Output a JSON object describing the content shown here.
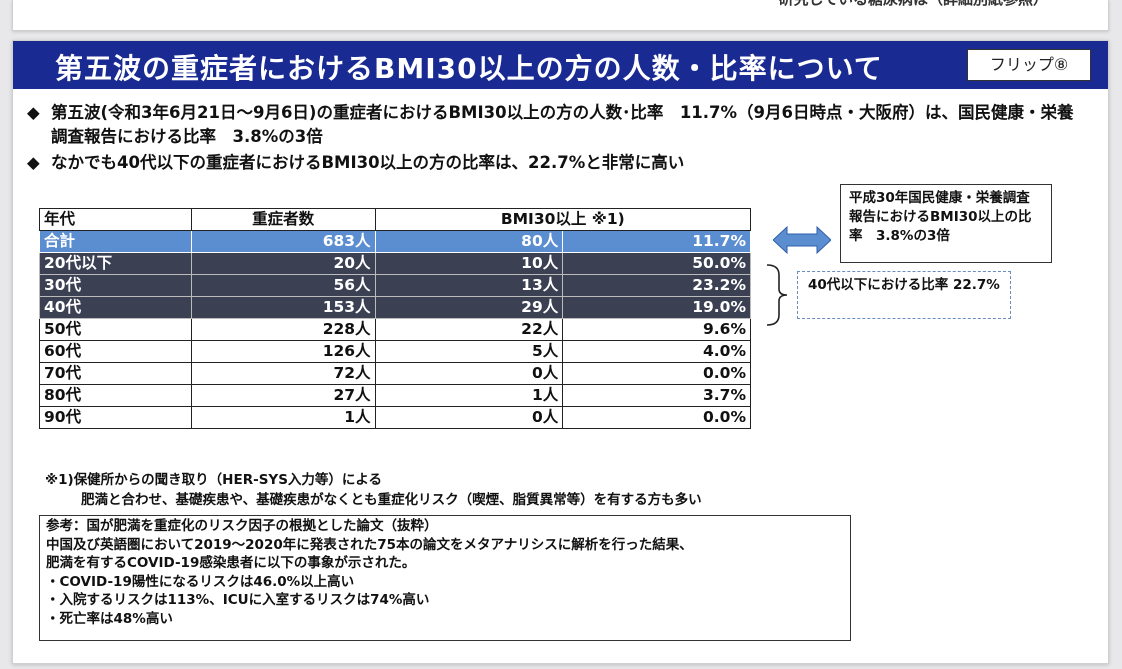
{
  "prev_slide": {
    "clipped_text": "研究している糖尿病は（詳細別紙参照）"
  },
  "header": {
    "title": "第五波の重症者におけるBMI30以上の方の人数・比率について",
    "flip_label": "フリップ⑧",
    "bg_color": "#1a2a93"
  },
  "bullets": [
    {
      "mark": "◆",
      "text": "第五波(令和3年6月21日〜9月6日)の重症者におけるBMI30以上の方の人数･比率　11.7%（9月6日時点・大阪府）は、国民健康・栄養調査報告における比率　3.8%の3倍"
    },
    {
      "mark": "◆",
      "text": "なかでも40代以下の重症者におけるBMI30以上の方の比率は、22.7%と非常に高い"
    }
  ],
  "table": {
    "headers": {
      "age": "年代",
      "severe": "重症者数",
      "bmi": "BMI30以上 ※1)"
    },
    "rows": [
      {
        "age": "合計",
        "severe": "683人",
        "bmi_count": "80人",
        "bmi_rate": "11.7%",
        "style": "total"
      },
      {
        "age": "20代以下",
        "severe": "20人",
        "bmi_count": "10人",
        "bmi_rate": "50.0%",
        "style": "dark"
      },
      {
        "age": "30代",
        "severe": "56人",
        "bmi_count": "13人",
        "bmi_rate": "23.2%",
        "style": "dark"
      },
      {
        "age": "40代",
        "severe": "153人",
        "bmi_count": "29人",
        "bmi_rate": "19.0%",
        "style": "dark"
      },
      {
        "age": "50代",
        "severe": "228人",
        "bmi_count": "22人",
        "bmi_rate": "9.6%",
        "style": "plain"
      },
      {
        "age": "60代",
        "severe": "126人",
        "bmi_count": "5人",
        "bmi_rate": "4.0%",
        "style": "plain"
      },
      {
        "age": "70代",
        "severe": "72人",
        "bmi_count": "0人",
        "bmi_rate": "0.0%",
        "style": "plain"
      },
      {
        "age": "80代",
        "severe": "27人",
        "bmi_count": "1人",
        "bmi_rate": "3.7%",
        "style": "plain"
      },
      {
        "age": "90代",
        "severe": "1人",
        "bmi_count": "0人",
        "bmi_rate": "0.0%",
        "style": "plain"
      }
    ]
  },
  "comparison_note": "平成30年国民健康・栄養調査報告におけるBMI30以上の比率　3.8%の3倍",
  "under40_note": "40代以下における比率 22.7%",
  "footnote": {
    "line1": "※1)保健所からの聞き取り（HER-SYS入力等）による",
    "line2": "肥満と合わせ、基礎疾患や、基礎疾患がなくとも重症化リスク（喫煙、脂質異常等）を有する方も多い"
  },
  "reference": {
    "lines": [
      "参考：国が肥満を重症化のリスク因子の根拠とした論文（抜粋）",
      "中国及び英語圏において2019〜2020年に発表された75本の論文をメタアナリシスに解析を行った結果、",
      "肥満を有するCOVID-19感染患者に以下の事象が示された。",
      "・COVID-19陽性になるリスクは46.0%以上高い",
      "・入院するリスクは113%、ICUに入室するリスクは74%高い",
      "・死亡率は48%高い"
    ]
  },
  "colors": {
    "total_row": "#5b8ed0",
    "dark_row": "#3b4152",
    "arrow": "#5b8ed0"
  }
}
